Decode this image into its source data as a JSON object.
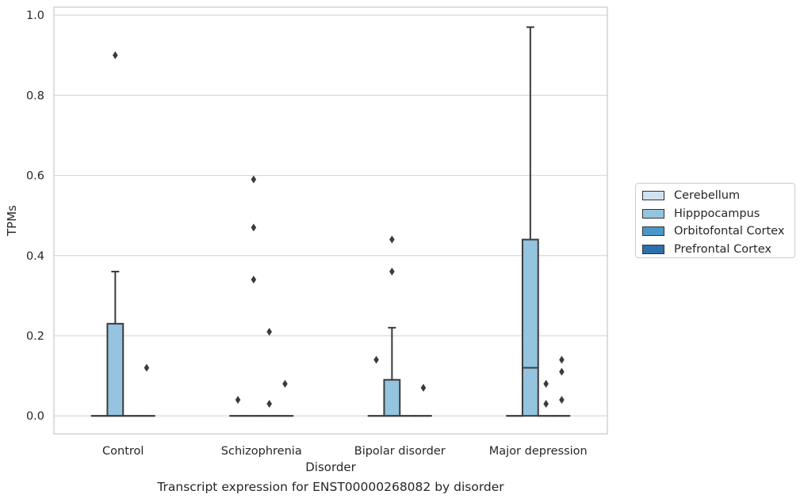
{
  "caption": "Transcript expression for ENST00000268082 by disorder",
  "chart_data": {
    "type": "boxplot",
    "xlabel": "Disorder",
    "ylabel": "TPMs",
    "ylim": [
      -0.045,
      1.02
    ],
    "yticks": [
      "0.0",
      "0.2",
      "0.4",
      "0.6",
      "0.8",
      "1.0"
    ],
    "grid": true,
    "legend_position": "right",
    "categories": [
      "Control",
      "Schizophrenia",
      "Bipolar disorder",
      "Major depression"
    ],
    "series": [
      {
        "name": "Cerebellum",
        "color": "#d0e1f2",
        "boxes": [
          {
            "q1": 0,
            "median": 0,
            "q3": 0,
            "whisker_low": 0,
            "whisker_high": 0,
            "outliers": []
          },
          {
            "q1": 0,
            "median": 0,
            "q3": 0,
            "whisker_low": 0,
            "whisker_high": 0,
            "outliers": [
              0.04
            ]
          },
          {
            "q1": 0,
            "median": 0,
            "q3": 0,
            "whisker_low": 0,
            "whisker_high": 0,
            "outliers": [
              0.14
            ]
          },
          {
            "q1": 0,
            "median": 0,
            "q3": 0,
            "whisker_low": 0,
            "whisker_high": 0,
            "outliers": []
          }
        ]
      },
      {
        "name": "Hipppocampus",
        "color": "#94c4df",
        "boxes": [
          {
            "q1": 0,
            "median": 0,
            "q3": 0.23,
            "whisker_low": 0,
            "whisker_high": 0.36,
            "outliers": [
              0.9
            ]
          },
          {
            "q1": 0,
            "median": 0,
            "q3": 0,
            "whisker_low": 0,
            "whisker_high": 0,
            "outliers": [
              0.59,
              0.47,
              0.34
            ]
          },
          {
            "q1": 0,
            "median": 0,
            "q3": 0.09,
            "whisker_low": 0,
            "whisker_high": 0.22,
            "outliers": [
              0.44,
              0.36
            ]
          },
          {
            "q1": 0,
            "median": 0.12,
            "q3": 0.44,
            "whisker_low": 0,
            "whisker_high": 0.97,
            "outliers": []
          }
        ]
      },
      {
        "name": "Orbitofontal Cortex",
        "color": "#4a98c9",
        "boxes": [
          {
            "q1": 0,
            "median": 0,
            "q3": 0,
            "whisker_low": 0,
            "whisker_high": 0,
            "outliers": []
          },
          {
            "q1": 0,
            "median": 0,
            "q3": 0,
            "whisker_low": 0,
            "whisker_high": 0,
            "outliers": [
              0.21,
              0.03
            ]
          },
          {
            "q1": 0,
            "median": 0,
            "q3": 0,
            "whisker_low": 0,
            "whisker_high": 0,
            "outliers": []
          },
          {
            "q1": 0,
            "median": 0,
            "q3": 0,
            "whisker_low": 0,
            "whisker_high": 0,
            "outliers": [
              0.08,
              0.03
            ]
          }
        ]
      },
      {
        "name": "Prefrontal Cortex",
        "color": "#2e6fae",
        "boxes": [
          {
            "q1": 0,
            "median": 0,
            "q3": 0,
            "whisker_low": 0,
            "whisker_high": 0,
            "outliers": [
              0.12
            ]
          },
          {
            "q1": 0,
            "median": 0,
            "q3": 0,
            "whisker_low": 0,
            "whisker_high": 0,
            "outliers": [
              0.08
            ]
          },
          {
            "q1": 0,
            "median": 0,
            "q3": 0,
            "whisker_low": 0,
            "whisker_high": 0,
            "outliers": [
              0.07
            ]
          },
          {
            "q1": 0,
            "median": 0,
            "q3": 0,
            "whisker_low": 0,
            "whisker_high": 0,
            "outliers": [
              0.14,
              0.11,
              0.04
            ]
          }
        ]
      }
    ]
  }
}
